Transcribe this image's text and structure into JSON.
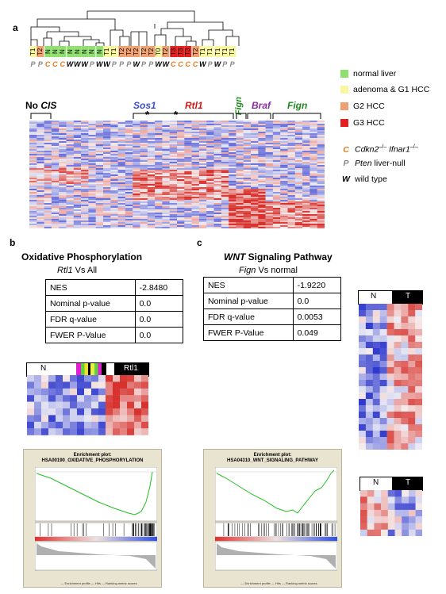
{
  "panel_a": {
    "letter": "a",
    "samples": [
      {
        "stage": "T1",
        "geno": "P"
      },
      {
        "stage": "T2",
        "geno": "P"
      },
      {
        "stage": "N",
        "geno": "C"
      },
      {
        "stage": "N",
        "geno": "C"
      },
      {
        "stage": "N",
        "geno": "C"
      },
      {
        "stage": "N",
        "geno": "W"
      },
      {
        "stage": "N",
        "geno": "W"
      },
      {
        "stage": "N",
        "geno": "W"
      },
      {
        "stage": "N",
        "geno": "P"
      },
      {
        "stage": "N",
        "geno": "W"
      },
      {
        "stage": "T1",
        "geno": "W"
      },
      {
        "stage": "T1",
        "geno": "P"
      },
      {
        "stage": "T2",
        "geno": "P"
      },
      {
        "stage": "T2",
        "geno": "P"
      },
      {
        "stage": "T2",
        "geno": "W"
      },
      {
        "stage": "T2",
        "geno": "P"
      },
      {
        "stage": "T2",
        "geno": "P"
      },
      {
        "stage": "T0",
        "geno": "W"
      },
      {
        "stage": "T2",
        "geno": "W"
      },
      {
        "stage": "T3",
        "geno": "C"
      },
      {
        "stage": "T3",
        "geno": "C"
      },
      {
        "stage": "T3",
        "geno": "C"
      },
      {
        "stage": "T2",
        "geno": "C"
      },
      {
        "stage": "T1",
        "geno": "W"
      },
      {
        "stage": "T1",
        "geno": "P"
      },
      {
        "stage": "T1",
        "geno": "W"
      },
      {
        "stage": "T1",
        "geno": "P"
      },
      {
        "stage": "T1",
        "geno": "P"
      }
    ],
    "cluster_labels": {
      "no_cis": "No",
      "cis": "CIS",
      "sos1": "Sos1",
      "rtl1": "Rtl1",
      "fign_v": "Fign",
      "braf": "Braf",
      "fign": "Fign",
      "asterisk": "*"
    },
    "legend_stage": [
      {
        "label": "normal liver",
        "color": "#90e070"
      },
      {
        "label": "adenoma & G1 HCC",
        "color": "#f8f6a0"
      },
      {
        "label": "G2 HCC",
        "color": "#f0a070"
      },
      {
        "label": "G3 HCC",
        "color": "#e42020"
      }
    ],
    "legend_geno": [
      {
        "letter": "C",
        "italic_label": "Cdkn2",
        "sup1": "–/–",
        "label2": " Ifnar1",
        "sup2": "–/–",
        "color": "#e07a20"
      },
      {
        "letter": "P",
        "italic_label": "Pten",
        "rest": " liver-null",
        "color": "#888888"
      },
      {
        "letter": "W",
        "rest": "wild type",
        "color": "#000000"
      }
    ],
    "colors": {
      "sos1": "#3a4fd0",
      "rtl1": "#d01818",
      "fign": "#1e8a1e",
      "braf": "#8a2ca0",
      "cdkn": "#e07a20",
      "pten": "#888888"
    }
  },
  "panel_b": {
    "letter": "b",
    "title": "Oxidative Phosphorylation",
    "subtitle_italic": "Rtl1",
    "subtitle_rest": " Vs All",
    "stats": [
      {
        "k": "NES",
        "v": "-2.8480"
      },
      {
        "k": "Nominal p-value",
        "v": "0.0"
      },
      {
        "k": "FDR q-value",
        "v": "0.0"
      },
      {
        "k": "FWER P-Value",
        "v": "0.0"
      }
    ],
    "heat_label_n": "N",
    "heat_label_t": "Rtl1",
    "gsea_header": "Enrichment plot:",
    "gsea_name": "HSA00190_OXIDATIVE_PHOSPHORYLATION",
    "legend": "— Enrichment profile — Hits — Ranking metric scores"
  },
  "panel_c": {
    "letter": "c",
    "title_italic": "WNT",
    "title_rest": " Signaling Pathway",
    "subtitle_italic": "Fign",
    "subtitle_rest": " Vs normal",
    "stats": [
      {
        "k": "NES",
        "v": "-1.9220"
      },
      {
        "k": "Nominal p-value",
        "v": "0.0"
      },
      {
        "k": "FDR q-value",
        "v": "0.0053"
      },
      {
        "k": "FWER P-Value",
        "v": "0.049"
      }
    ],
    "heat_label_n": "N",
    "heat_label_t": "T",
    "gsea_header": "Enrichment plot:",
    "gsea_name": "HSA04310_WNT_SIGNALING_PATHWAY",
    "legend": "— Enrichment profile — Hits — Ranking metric scores"
  }
}
